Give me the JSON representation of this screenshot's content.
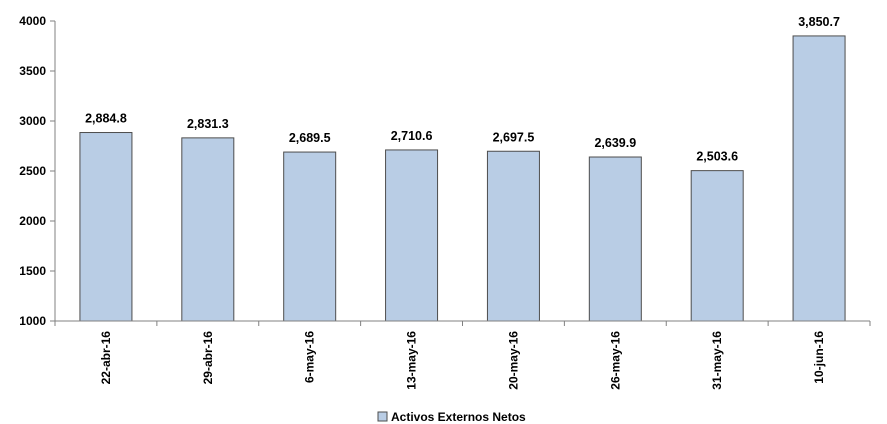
{
  "chart_data": {
    "type": "bar",
    "categories": [
      "22-abr-16",
      "29-abr-16",
      "6-may-16",
      "13-may-16",
      "20-may-16",
      "26-may-16",
      "31-may-16",
      "10-jun-16"
    ],
    "series": [
      {
        "name": "Activos Externos Netos",
        "values": [
          2884.8,
          2831.3,
          2689.5,
          2710.6,
          2697.5,
          2639.9,
          2503.6,
          3850.7
        ],
        "data_labels": [
          "2,884.8",
          "2,831.3",
          "2,689.5",
          "2,710.6",
          "2,697.5",
          "2,639.9",
          "2,503.6",
          "3,850.7"
        ],
        "color": "#b9cde5",
        "border_color": "#4d4d4d"
      }
    ],
    "ylim": [
      1000,
      4000
    ],
    "yticks": [
      1000,
      1500,
      2000,
      2500,
      3000,
      3500,
      4000
    ],
    "grid": false,
    "legend_position": "bottom",
    "title": "",
    "xlabel": "",
    "ylabel": ""
  }
}
